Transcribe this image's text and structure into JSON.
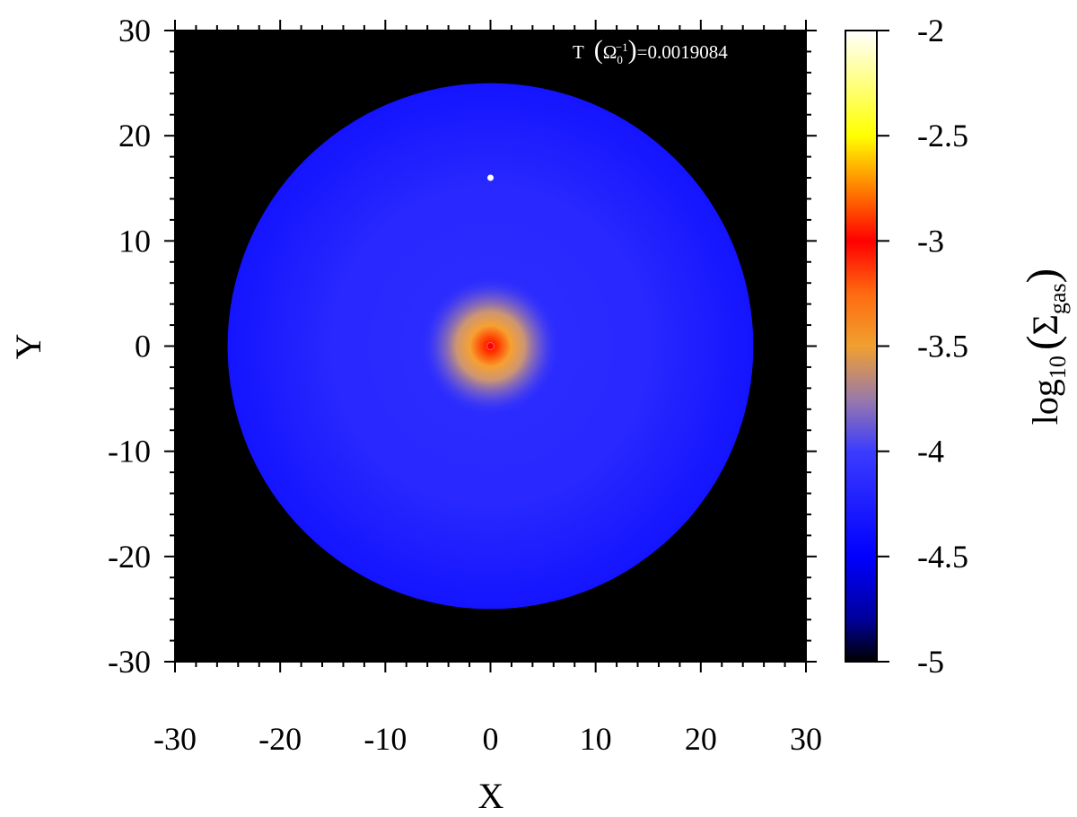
{
  "chart_data": {
    "type": "heatmap",
    "xlabel": "X",
    "ylabel": "Y",
    "xlim": [
      -30,
      30
    ],
    "ylim": [
      -30,
      30
    ],
    "xticks": [
      -30,
      -20,
      -10,
      0,
      10,
      20,
      30
    ],
    "yticks": [
      -30,
      -20,
      -10,
      0,
      10,
      20,
      30
    ],
    "xtick_labels": [
      "-30",
      "-20",
      "-10",
      "0",
      "10",
      "20",
      "30"
    ],
    "ytick_labels": [
      "-30",
      "-20",
      "-10",
      "0",
      "10",
      "20",
      "30"
    ],
    "annotation": {
      "prefix": "T",
      "omega": "Ω",
      "omega_sub": "0",
      "omega_sup": "−1",
      "value": "=0.0019084"
    },
    "colorbar": {
      "label_base": "log",
      "label_base_sub": "10",
      "label_sigma": "Σ",
      "label_sigma_sub": "gas",
      "range": [
        -5,
        -2
      ],
      "ticks": [
        -2,
        -2.5,
        -3,
        -3.5,
        -4,
        -4.5,
        -5
      ],
      "tick_labels": [
        "-2",
        "-2.5",
        "-3",
        "-3.5",
        "-4",
        "-4.5",
        "-5"
      ],
      "colormap": [
        {
          "v": -5.0,
          "color": "#000000"
        },
        {
          "v": -4.8,
          "color": "#00009a"
        },
        {
          "v": -4.5,
          "color": "#0000ff"
        },
        {
          "v": -4.0,
          "color": "#3c3cff"
        },
        {
          "v": -3.75,
          "color": "#9b7aa8"
        },
        {
          "v": -3.5,
          "color": "#f0a030"
        },
        {
          "v": -3.25,
          "color": "#ff6a10"
        },
        {
          "v": -3.0,
          "color": "#ff0000"
        },
        {
          "v": -2.75,
          "color": "#ff8000"
        },
        {
          "v": -2.5,
          "color": "#ffff00"
        },
        {
          "v": -2.0,
          "color": "#ffffff"
        }
      ]
    },
    "field": {
      "background_value": -5.0,
      "disk_radius": 25,
      "disk_outer_value": -4.5,
      "disk_inner_value": -4.45,
      "central_peak": {
        "x": 0,
        "y": 0,
        "peak_value": -3.0,
        "halo_value": -3.55
      },
      "planet": {
        "x": 0,
        "y": 16,
        "value": -2.0
      }
    }
  }
}
